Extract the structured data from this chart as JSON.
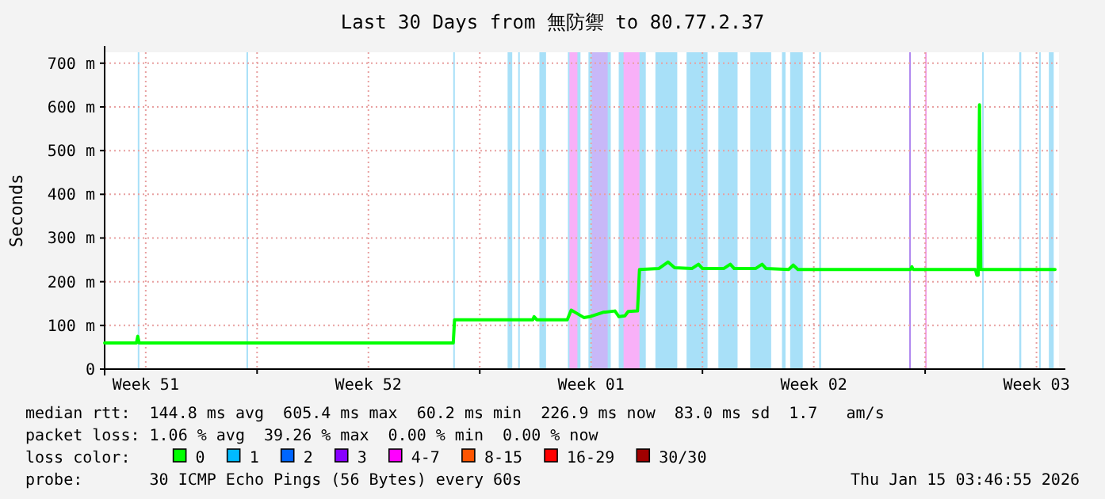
{
  "chart_data": {
    "type": "line",
    "title": "Last 30 Days from 無防禦 to 80.77.2.37",
    "ylabel": "Seconds",
    "legend_title": "loss color:",
    "legend": "bottom",
    "grid": true,
    "xlim": [
      "2025-12-17T05:00",
      "2026-01-16T05:00"
    ],
    "xticks": [
      {
        "value": "2025-12-18T12:00",
        "label": "Week 51"
      },
      {
        "value": "2025-12-22T00:00",
        "label": null
      },
      {
        "value": "2025-12-25T12:00",
        "label": "Week 52"
      },
      {
        "value": "2025-12-29T00:00",
        "label": null
      },
      {
        "value": "2026-01-01T12:00",
        "label": "Week 01"
      },
      {
        "value": "2026-01-05T00:00",
        "label": null
      },
      {
        "value": "2026-01-08T12:00",
        "label": "Week 02"
      },
      {
        "value": "2026-01-12T00:00",
        "label": null
      },
      {
        "value": "2026-01-15T12:00",
        "label": "Week 03"
      }
    ],
    "ylim": [
      0,
      725
    ],
    "yticks": [
      0,
      {
        "value": 100,
        "label": "100 m"
      },
      {
        "value": 200,
        "label": "200 m"
      },
      {
        "value": 300,
        "label": "300 m"
      },
      {
        "value": 400,
        "label": "400 m"
      },
      {
        "value": 500,
        "label": "500 m"
      },
      {
        "value": 600,
        "label": "600 m"
      },
      {
        "value": 700,
        "label": "700 m"
      }
    ],
    "bands": [
      {
        "axis": "x",
        "from": "2025-12-18T06:00",
        "to": "2025-12-18T07:00",
        "color": "#a8e0f8"
      },
      {
        "axis": "x",
        "from": "2025-12-21T16:00",
        "to": "2025-12-21T17:00",
        "color": "#a8e0f8"
      },
      {
        "axis": "x",
        "from": "2025-12-28T04:00",
        "to": "2025-12-28T05:00",
        "color": "#a8e0f8"
      },
      {
        "axis": "x",
        "from": "2025-12-29T21:00",
        "to": "2025-12-30T00:30",
        "color": "#a8e0f8"
      },
      {
        "axis": "x",
        "from": "2025-12-30T05:00",
        "to": "2025-12-30T06:00",
        "color": "#a8e0f8"
      },
      {
        "axis": "x",
        "from": "2025-12-30T21:00",
        "to": "2025-12-31T02:00",
        "color": "#a8e0f8"
      },
      {
        "axis": "x",
        "from": "2025-12-31T18:30",
        "to": "2026-01-01T04:00",
        "color": "#a8e0f8"
      },
      {
        "axis": "x",
        "from": "2025-12-31T19:40",
        "to": "2026-01-01T01:40",
        "color": "#f8b0f8"
      },
      {
        "axis": "x",
        "from": "2026-01-01T10:00",
        "to": "2026-01-02T02:50",
        "color": "#a8e0f8"
      },
      {
        "axis": "x",
        "from": "2026-01-01T12:30",
        "to": "2026-01-02T00:30",
        "color": "#c8b8f8"
      },
      {
        "axis": "x",
        "from": "2026-01-02T08:50",
        "to": "2026-01-03T05:15",
        "color": "#a8e0f8"
      },
      {
        "axis": "x",
        "from": "2026-01-02T12:30",
        "to": "2026-01-03T00:30",
        "color": "#f8b0f8"
      },
      {
        "axis": "x",
        "from": "2026-01-03T12:30",
        "to": "2026-01-04T05:00",
        "color": "#a8e0f8"
      },
      {
        "axis": "x",
        "from": "2026-01-04T12:00",
        "to": "2026-01-05T03:50",
        "color": "#a8e0f8"
      },
      {
        "axis": "x",
        "from": "2026-01-05T12:00",
        "to": "2026-01-06T02:30",
        "color": "#a8e0f8"
      },
      {
        "axis": "x",
        "from": "2026-01-06T12:00",
        "to": "2026-01-07T03:50",
        "color": "#a8e0f8"
      },
      {
        "axis": "x",
        "from": "2026-01-07T12:00",
        "to": "2026-01-07T14:40",
        "color": "#a8e0f8"
      },
      {
        "axis": "x",
        "from": "2026-01-07T18:10",
        "to": "2026-01-08T03:40",
        "color": "#a8e0f8"
      },
      {
        "axis": "x",
        "from": "2026-01-08T16:00",
        "to": "2026-01-08T17:30",
        "color": "#a8e0f8"
      },
      {
        "axis": "x",
        "from": "2026-01-11T12:00",
        "to": "2026-01-11T13:00",
        "color": "#b088f0"
      },
      {
        "axis": "x",
        "from": "2026-01-12T00:00",
        "to": "2026-01-12T01:00",
        "color": "#f0a0e8"
      },
      {
        "axis": "x",
        "from": "2026-01-13T19:00",
        "to": "2026-01-13T20:00",
        "color": "#a8e0f8"
      },
      {
        "axis": "x",
        "from": "2026-01-14T23:00",
        "to": "2026-01-15T00:30",
        "color": "#a8e0f8"
      },
      {
        "axis": "x",
        "from": "2026-01-15T14:00",
        "to": "2026-01-15T15:00",
        "color": "#a8e0f8"
      },
      {
        "axis": "x",
        "from": "2026-01-15T21:20",
        "to": "2026-01-16T01:00",
        "color": "#a8e0f8"
      }
    ],
    "series": [
      {
        "name": "0",
        "color": "#00ff00",
        "x": [
          "2025-12-17T05:00",
          "2025-12-18T05:00",
          "2025-12-18T06:00",
          "2025-12-18T07:00",
          "2025-12-28T04:00",
          "2025-12-28T05:00",
          "2025-12-30T16:00",
          "2025-12-30T17:00",
          "2025-12-30T19:00",
          "2025-12-31T18:00",
          "2025-12-31T21:00",
          "2026-01-01T01:00",
          "2026-01-01T06:30",
          "2026-01-01T11:00",
          "2026-01-01T21:00",
          "2026-01-02T06:00",
          "2026-01-02T09:00",
          "2026-01-02T13:30",
          "2026-01-02T16:00",
          "2026-01-02T23:00",
          "2026-01-03T00:30",
          "2026-01-03T15:00",
          "2026-01-03T22:00",
          "2026-01-04T03:00",
          "2026-01-04T16:00",
          "2026-01-04T21:00",
          "2026-01-05T00:00",
          "2026-01-05T16:00",
          "2026-01-05T21:00",
          "2026-01-06T00:00",
          "2026-01-06T16:00",
          "2026-01-06T21:00",
          "2026-01-07T00:00",
          "2026-01-07T17:00",
          "2026-01-07T20:30",
          "2026-01-08T00:00",
          "2026-01-11T13:00",
          "2026-01-11T14:00",
          "2026-01-11T15:00",
          "2026-01-13T14:00",
          "2026-01-13T15:00",
          "2026-01-13T16:00",
          "2026-01-13T17:00",
          "2026-01-13T18:00",
          "2026-01-16T02:00"
        ],
        "values": [
          60,
          60,
          75,
          60,
          60,
          113,
          113,
          120,
          113,
          113,
          135,
          128,
          118,
          120,
          130,
          133,
          120,
          122,
          132,
          133,
          228,
          230,
          245,
          232,
          230,
          240,
          230,
          230,
          240,
          230,
          230,
          240,
          230,
          228,
          238,
          228,
          228,
          234,
          228,
          228,
          215,
          215,
          605,
          228,
          228
        ]
      },
      {
        "name": "1",
        "color": "#00bbff"
      },
      {
        "name": "2",
        "color": "#0066ff"
      },
      {
        "name": "3",
        "color": "#8800ff"
      },
      {
        "name": "4-7",
        "color": "#ff00ff"
      },
      {
        "name": "8-15",
        "color": "#ff5500"
      },
      {
        "name": "16-29",
        "color": "#ff0000"
      },
      {
        "name": "30/30",
        "color": "#a10000"
      }
    ],
    "annotations": [
      "median rtt:  144.8 ms avg  605.4 ms max  60.2 ms min  226.9 ms now  83.0 ms sd  1.7   am/s",
      "packet loss: 1.06 % avg  39.26 % max  0.00 % min  0.00 % now",
      "probe:       30 ICMP Echo Pings (56 Bytes) every 60s",
      "Thu Jan 15 03:46:55 2026"
    ]
  }
}
